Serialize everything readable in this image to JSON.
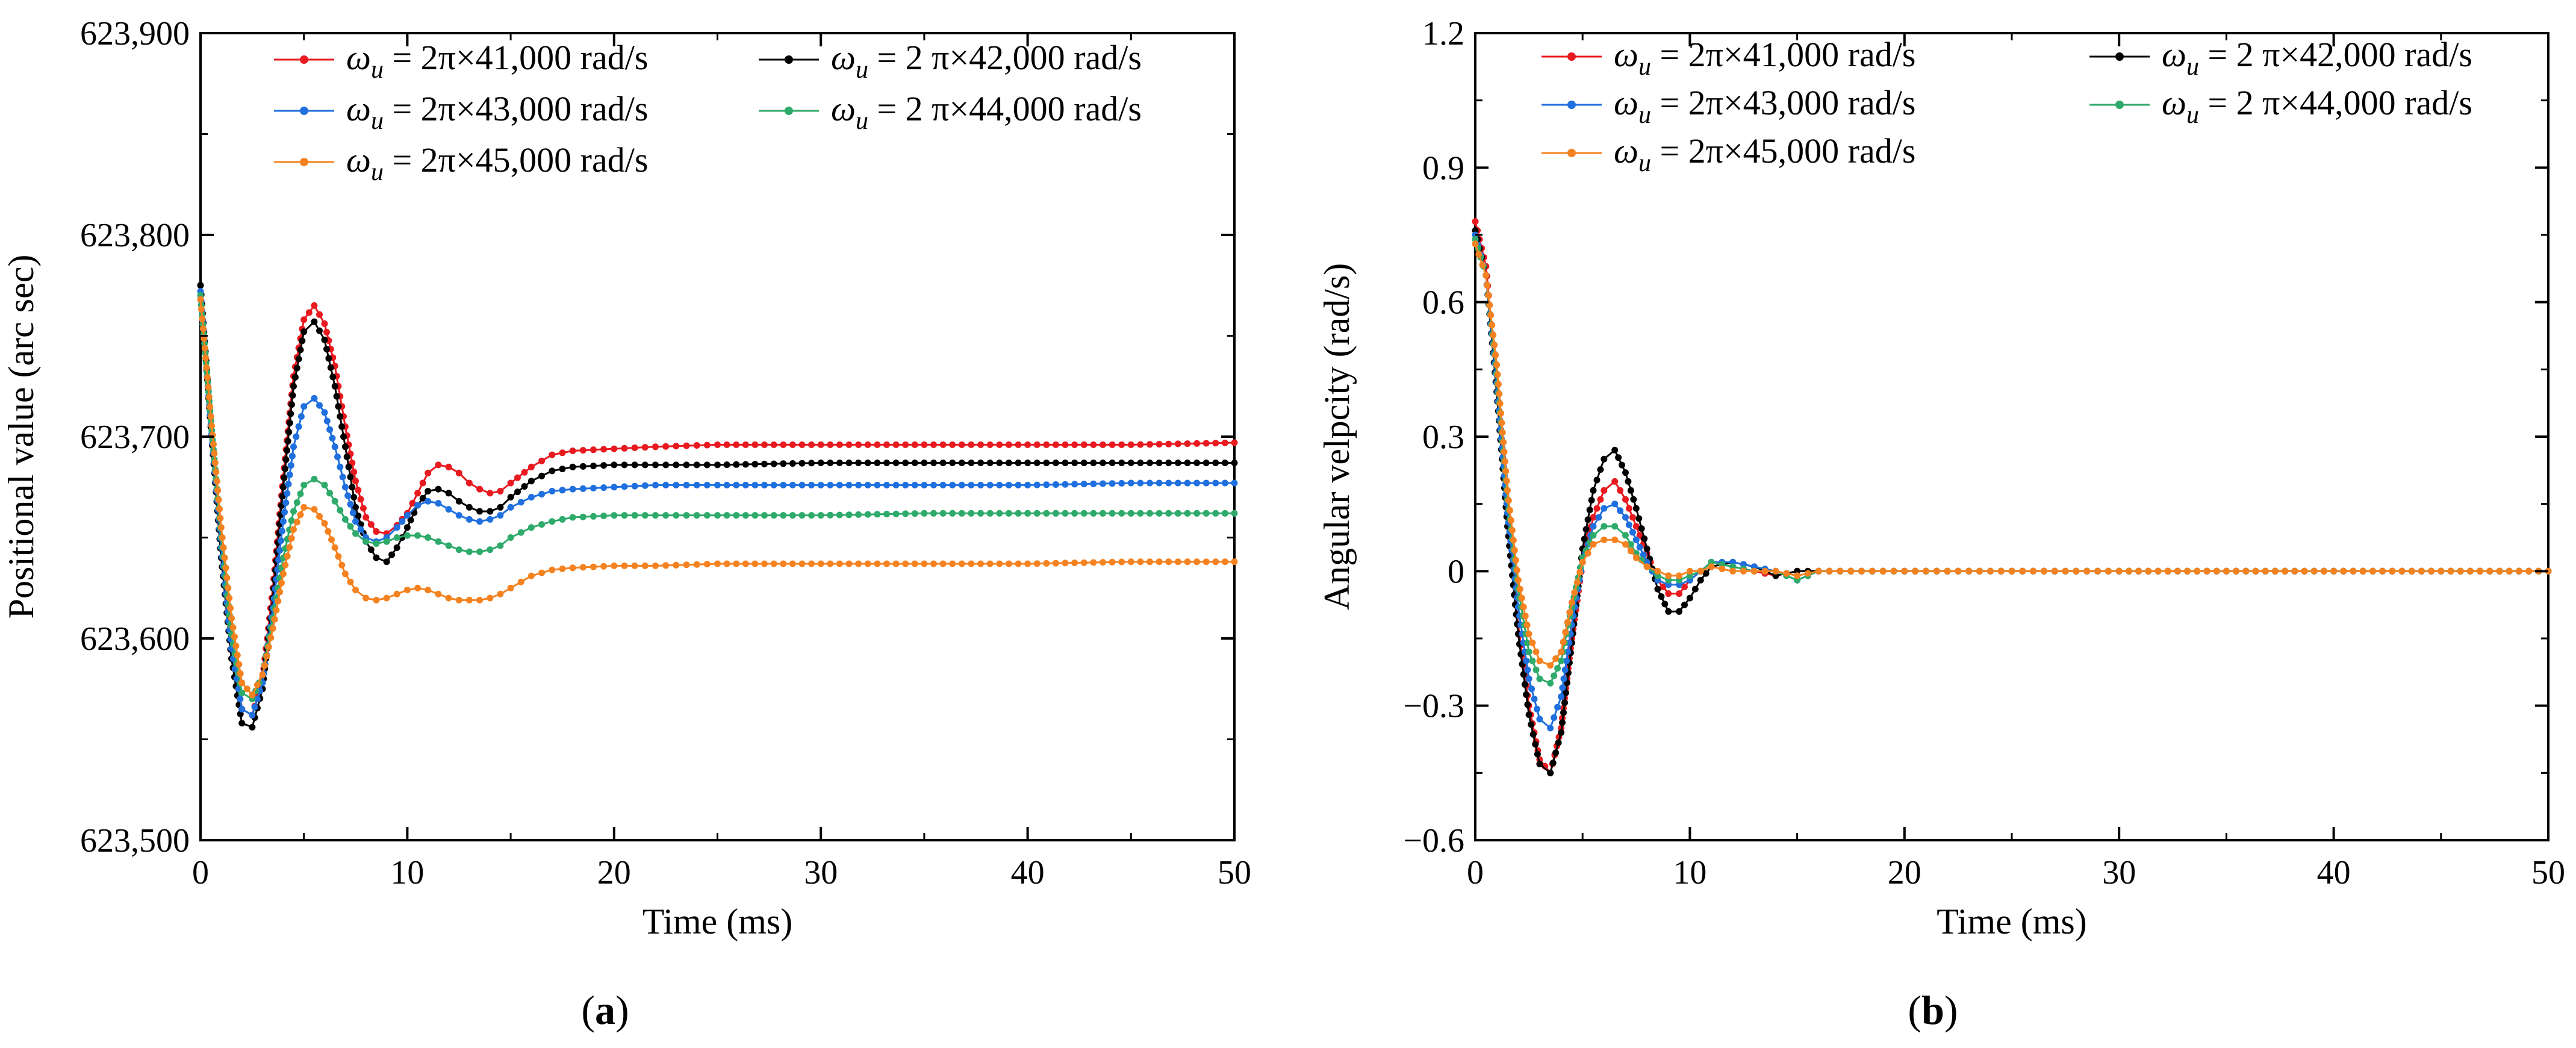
{
  "colors": {
    "red": "#e8191f",
    "black": "#000000",
    "blue": "#1f6fde",
    "green": "#2eaa6a",
    "orange": "#f58220"
  },
  "chart_data": [
    {
      "id": "a",
      "type": "line",
      "caption": "(a)",
      "caption_prefix": "(",
      "caption_letter": "a",
      "caption_suffix": ")",
      "xlabel": "Time (ms)",
      "ylabel": "Positional value (arc sec)",
      "xlim": [
        0,
        50
      ],
      "ylim": [
        623500,
        623900
      ],
      "xticks": [
        0,
        10,
        20,
        30,
        40,
        50
      ],
      "xtick_labels": [
        "0",
        "10",
        "20",
        "30",
        "40",
        "50"
      ],
      "yticks": [
        623500,
        623600,
        623700,
        623800,
        623900
      ],
      "ytick_labels": [
        "623,500",
        "623,600",
        "623,700",
        "623,800",
        "623,900"
      ],
      "grid": false,
      "legend_position": "top",
      "series": [
        {
          "name": "ωu = 2π×41,000 rad/s",
          "sym": "ω",
          "sub": "u",
          "rest": " = 2π×41,000 rad/s",
          "color": "red",
          "x": [
            0,
            0.5,
            1,
            1.5,
            2,
            2.5,
            3,
            3.5,
            4,
            4.5,
            5,
            5.5,
            6,
            6.5,
            7,
            7.5,
            8,
            8.5,
            9,
            9.5,
            10,
            10.5,
            11,
            11.5,
            12,
            12.5,
            13,
            13.5,
            14,
            14.5,
            15,
            16,
            17,
            18,
            20,
            22,
            25,
            30,
            35,
            40,
            45,
            50
          ],
          "y": [
            623775,
            623705,
            623645,
            623595,
            623565,
            623562,
            623580,
            623625,
            623680,
            623730,
            623758,
            623765,
            623756,
            623735,
            623705,
            623678,
            623660,
            623653,
            623652,
            623656,
            623662,
            623672,
            623682,
            623686,
            623685,
            623682,
            623677,
            623674,
            623672,
            623673,
            623677,
            623685,
            623691,
            623693,
            623694,
            623695,
            623696,
            623696,
            623696,
            623696,
            623696,
            623697
          ]
        },
        {
          "name": "ωu = 2 π×42,000 rad/s",
          "sym": "ω",
          "sub": "u",
          "rest": " = 2 π×42,000 rad/s",
          "color": "black",
          "x": [
            0,
            0.5,
            1,
            1.5,
            2,
            2.5,
            3,
            3.5,
            4,
            4.5,
            5,
            5.5,
            6,
            6.5,
            7,
            7.5,
            8,
            8.5,
            9,
            9.5,
            10,
            10.5,
            11,
            11.5,
            12,
            12.5,
            13,
            13.5,
            14,
            14.5,
            15,
            16,
            17,
            18,
            20,
            22,
            25,
            30,
            35,
            40,
            45,
            50
          ],
          "y": [
            623775,
            623705,
            623640,
            623590,
            623558,
            623556,
            623575,
            623620,
            623675,
            623725,
            623752,
            623757,
            623748,
            623725,
            623695,
            623665,
            623648,
            623640,
            623638,
            623645,
            623655,
            623666,
            623673,
            623674,
            623672,
            623668,
            623665,
            623663,
            623663,
            623665,
            623670,
            623678,
            623683,
            623685,
            623686,
            623686,
            623686,
            623687,
            623687,
            623687,
            623687,
            623687
          ]
        },
        {
          "name": "ωu = 2π×43,000 rad/s",
          "sym": "ω",
          "sub": "u",
          "rest": " = 2π×43,000 rad/s",
          "color": "blue",
          "x": [
            0,
            0.5,
            1,
            1.5,
            2,
            2.5,
            3,
            3.5,
            4,
            4.5,
            5,
            5.5,
            6,
            6.5,
            7,
            7.5,
            8,
            8.5,
            9,
            9.5,
            10,
            10.5,
            11,
            11.5,
            12,
            12.5,
            13,
            13.5,
            14,
            14.5,
            15,
            16,
            17,
            18,
            20,
            22,
            25,
            30,
            35,
            40,
            45,
            50
          ],
          "y": [
            623772,
            623706,
            623645,
            623595,
            623565,
            623562,
            623578,
            623615,
            623658,
            623695,
            623715,
            623719,
            623712,
            623695,
            623675,
            623658,
            623650,
            623648,
            623650,
            623655,
            623661,
            623666,
            623668,
            623667,
            623664,
            623661,
            623659,
            623658,
            623659,
            623661,
            623665,
            623670,
            623673,
            623674,
            623675,
            623676,
            623676,
            623676,
            623676,
            623676,
            623677,
            623677
          ]
        },
        {
          "name": "ωu = 2 π×44,000 rad/s",
          "sym": "ω",
          "sub": "u",
          "rest": " = 2 π×44,000 rad/s",
          "color": "green",
          "x": [
            0,
            0.5,
            1,
            1.5,
            2,
            2.5,
            3,
            3.5,
            4,
            4.5,
            5,
            5.5,
            6,
            6.5,
            7,
            7.5,
            8,
            8.5,
            9,
            9.5,
            10,
            10.5,
            11,
            11.5,
            12,
            12.5,
            13,
            13.5,
            14,
            14.5,
            15,
            16,
            17,
            18,
            20,
            22,
            25,
            30,
            35,
            40,
            45,
            50
          ],
          "y": [
            623770,
            623708,
            623650,
            623602,
            623573,
            623570,
            623582,
            623610,
            623640,
            623663,
            623676,
            623679,
            623676,
            623668,
            623659,
            623652,
            623648,
            623647,
            623648,
            623650,
            623651,
            623651,
            623650,
            623648,
            623646,
            623644,
            623643,
            623643,
            623644,
            623646,
            623650,
            623655,
            623658,
            623660,
            623661,
            623661,
            623661,
            623661,
            623662,
            623662,
            623662,
            623662
          ]
        },
        {
          "name": "ωu = 2π×45,000 rad/s",
          "sym": "ω",
          "sub": "u",
          "rest": " = 2π×45,000 rad/s",
          "color": "orange",
          "x": [
            0,
            0.5,
            1,
            1.5,
            2,
            2.5,
            3,
            3.5,
            4,
            4.5,
            5,
            5.5,
            6,
            6.5,
            7,
            7.5,
            8,
            8.5,
            9,
            9.5,
            10,
            10.5,
            11,
            11.5,
            12,
            12.5,
            13,
            13.5,
            14,
            14.5,
            15,
            16,
            17,
            18,
            20,
            22,
            25,
            30,
            35,
            40,
            45,
            50
          ],
          "y": [
            623768,
            623710,
            623655,
            623610,
            623578,
            623572,
            623582,
            623605,
            623632,
            623654,
            623665,
            623664,
            623657,
            623645,
            623632,
            623624,
            623620,
            623619,
            623620,
            623622,
            623624,
            623625,
            623624,
            623622,
            623620,
            623619,
            623619,
            623619,
            623620,
            623622,
            623625,
            623631,
            623634,
            623635,
            623636,
            623636,
            623637,
            623637,
            623637,
            623637,
            623638,
            623638
          ]
        }
      ]
    },
    {
      "id": "b",
      "type": "line",
      "caption": "(b)",
      "caption_prefix": "(",
      "caption_letter": "b",
      "caption_suffix": ")",
      "xlabel": "Time (ms)",
      "ylabel": "Angular velpcity (rad/s)",
      "xlim": [
        0,
        50
      ],
      "ylim": [
        -0.6,
        1.2
      ],
      "xticks": [
        0,
        10,
        20,
        30,
        40,
        50
      ],
      "xtick_labels": [
        "0",
        "10",
        "20",
        "30",
        "40",
        "50"
      ],
      "yticks": [
        -0.6,
        -0.3,
        0,
        0.3,
        0.6,
        0.9,
        1.2
      ],
      "ytick_labels": [
        "−0.6",
        "−0.3",
        "0",
        "0.3",
        "0.6",
        "0.9",
        "1.2"
      ],
      "grid": false,
      "legend_position": "top",
      "series": [
        {
          "name": "ωu = 2π×41,000 rad/s",
          "sym": "ω",
          "sub": "u",
          "rest": " = 2π×41,000 rad/s",
          "color": "red",
          "x": [
            0,
            0.5,
            1,
            1.5,
            2,
            2.5,
            3,
            3.5,
            4,
            4.5,
            5,
            5.5,
            6,
            6.5,
            7,
            7.5,
            8,
            8.5,
            9,
            9.5,
            10,
            10.5,
            11,
            12,
            13,
            14,
            15,
            16,
            18,
            20,
            22,
            24,
            26,
            28,
            30,
            35,
            40,
            45,
            50
          ],
          "y": [
            0.78,
            0.68,
            0.42,
            0.12,
            -0.12,
            -0.3,
            -0.42,
            -0.45,
            -0.35,
            -0.15,
            0.02,
            0.12,
            0.18,
            0.2,
            0.16,
            0.1,
            0.04,
            -0.02,
            -0.05,
            -0.05,
            -0.02,
            0,
            0.02,
            0.01,
            0,
            -0.01,
            0,
            0,
            0,
            0,
            0,
            0,
            0,
            0,
            0,
            0,
            0,
            0,
            0
          ]
        },
        {
          "name": "ωu = 2 π×42,000 rad/s",
          "sym": "ω",
          "sub": "u",
          "rest": " = 2 π×42,000 rad/s",
          "color": "black",
          "x": [
            0,
            0.5,
            1,
            1.5,
            2,
            2.5,
            3,
            3.5,
            4,
            4.5,
            5,
            5.5,
            6,
            6.5,
            7,
            7.5,
            8,
            8.5,
            9,
            9.5,
            10,
            10.5,
            11,
            12,
            13,
            14,
            15,
            16,
            18,
            20,
            22,
            24,
            26,
            28,
            30,
            35,
            40,
            45,
            50
          ],
          "y": [
            0.76,
            0.66,
            0.4,
            0.1,
            -0.14,
            -0.32,
            -0.43,
            -0.45,
            -0.36,
            -0.16,
            0.05,
            0.18,
            0.25,
            0.27,
            0.22,
            0.14,
            0.05,
            -0.04,
            -0.09,
            -0.09,
            -0.06,
            -0.02,
            0.01,
            0.02,
            0.01,
            -0.01,
            0,
            0,
            0,
            0,
            0,
            0,
            0,
            0,
            0,
            0,
            0,
            0,
            0
          ]
        },
        {
          "name": "ωu = 2π×43,000 rad/s",
          "sym": "ω",
          "sub": "u",
          "rest": " = 2π×43,000 rad/s",
          "color": "blue",
          "x": [
            0,
            0.5,
            1,
            1.5,
            2,
            2.5,
            3,
            3.5,
            4,
            4.5,
            5,
            5.5,
            6,
            6.5,
            7,
            7.5,
            8,
            8.5,
            9,
            9.5,
            10,
            10.5,
            11,
            12,
            13,
            14,
            15,
            16,
            18,
            20,
            22,
            24,
            26,
            28,
            30,
            35,
            40,
            45,
            50
          ],
          "y": [
            0.75,
            0.66,
            0.42,
            0.13,
            -0.08,
            -0.24,
            -0.33,
            -0.35,
            -0.28,
            -0.12,
            0.02,
            0.1,
            0.14,
            0.15,
            0.12,
            0.07,
            0.02,
            -0.02,
            -0.03,
            -0.03,
            -0.02,
            0,
            0.02,
            0.02,
            0.01,
            0,
            -0.02,
            0,
            0,
            0,
            0,
            0,
            0,
            0,
            0,
            0,
            0,
            0,
            0
          ]
        },
        {
          "name": "ωu = 2 π×44,000 rad/s",
          "sym": "ω",
          "sub": "u",
          "rest": " = 2 π×44,000 rad/s",
          "color": "green",
          "x": [
            0,
            0.5,
            1,
            1.5,
            2,
            2.5,
            3,
            3.5,
            4,
            4.5,
            5,
            5.5,
            6,
            6.5,
            7,
            7.5,
            8,
            8.5,
            9,
            9.5,
            10,
            10.5,
            11,
            12,
            13,
            14,
            15,
            16,
            18,
            20,
            22,
            24,
            26,
            28,
            30,
            35,
            40,
            45,
            50
          ],
          "y": [
            0.74,
            0.66,
            0.44,
            0.16,
            -0.04,
            -0.18,
            -0.24,
            -0.25,
            -0.2,
            -0.08,
            0.03,
            0.08,
            0.1,
            0.1,
            0.08,
            0.04,
            0.01,
            -0.01,
            -0.02,
            -0.02,
            -0.01,
            0,
            0.02,
            0.01,
            0,
            0,
            -0.02,
            0,
            0,
            0,
            0,
            0,
            0,
            0,
            0,
            0,
            0,
            0,
            0
          ]
        },
        {
          "name": "ωu = 2π×45,000 rad/s",
          "sym": "ω",
          "sub": "u",
          "rest": " = 2π×45,000 rad/s",
          "color": "orange",
          "x": [
            0,
            0.5,
            1,
            1.5,
            2,
            2.5,
            3,
            3.5,
            4,
            4.5,
            5,
            5.5,
            6,
            6.5,
            7,
            7.5,
            8,
            8.5,
            9,
            9.5,
            10,
            10.5,
            11,
            12,
            13,
            14,
            15,
            16,
            18,
            20,
            22,
            24,
            26,
            28,
            30,
            35,
            40,
            45,
            50
          ],
          "y": [
            0.73,
            0.66,
            0.46,
            0.18,
            -0.02,
            -0.14,
            -0.2,
            -0.21,
            -0.18,
            -0.07,
            0.02,
            0.06,
            0.07,
            0.07,
            0.06,
            0.03,
            0.01,
            0,
            -0.01,
            -0.01,
            0,
            0,
            0.01,
            0,
            0,
            0,
            -0.01,
            0,
            0,
            0,
            0,
            0,
            0,
            0,
            0,
            0,
            0,
            0,
            0
          ]
        }
      ]
    }
  ]
}
